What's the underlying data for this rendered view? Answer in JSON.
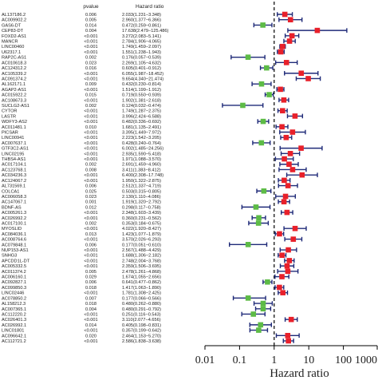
{
  "table": {
    "headers": {
      "pvalue": "pvalue",
      "hr": "Hazard ratio"
    }
  },
  "chart_data": {
    "type": "forest",
    "xscale": "log",
    "xlim": [
      0.01,
      1000
    ],
    "xticks": [
      0.01,
      0.1,
      1,
      10,
      100,
      1000
    ],
    "xtick_labels": [
      "0.01",
      "0.1",
      "1",
      "10",
      "100",
      "1000"
    ],
    "xlabel": "Hazard ratio",
    "reference_line": 1,
    "colors": {
      "risk": "#e8202a",
      "protective": "#5dbb46",
      "ci": "#1f2a78",
      "reference": "#000000"
    },
    "rows": [
      {
        "gene": "AL137186.2",
        "p": "0.006",
        "hr": 2.033,
        "lo": 1.231,
        "hi": 3.348,
        "text": "2.033(1.231−3.348)"
      },
      {
        "gene": "AC009902.2",
        "p": "0.005",
        "hr": 2.96,
        "lo": 1.377,
        "hi": 6.366,
        "text": "2.960(1.377−6.366)"
      },
      {
        "gene": "GAS6-DT",
        "p": "0.014",
        "hr": 0.472,
        "lo": 0.259,
        "hi": 0.861,
        "text": "0.472(0.259−0.861)"
      },
      {
        "gene": "CEP83-DT",
        "p": "0.004",
        "hr": 17.638,
        "lo": 2.479,
        "hi": 125.486,
        "text": "17.638(2.479−125.486)"
      },
      {
        "gene": "FOXD2-AS1",
        "p": "<0.001",
        "hr": 3.272,
        "lo": 2.083,
        "hi": 5.141,
        "text": "3.272(2.083−5.141)"
      },
      {
        "gene": "MANCR",
        "p": "<0.001",
        "hr": 2.784,
        "lo": 1.906,
        "hi": 4.065,
        "text": "2.784(1.906−4.065)"
      },
      {
        "gene": "LINC00460",
        "p": "<0.001",
        "hr": 1.749,
        "lo": 1.459,
        "hi": 2.097,
        "text": "1.749(1.459−2.097)"
      },
      {
        "gene": "U62317.1",
        "p": "<0.001",
        "hr": 1.551,
        "lo": 1.238,
        "hi": 1.943,
        "text": "1.551(1.238−1.943)"
      },
      {
        "gene": "RAP2C-AS1",
        "p": "0.002",
        "hr": 0.176,
        "lo": 0.057,
        "hi": 0.539,
        "text": "0.176(0.057−0.539)"
      },
      {
        "gene": "AC010618.3",
        "p": "0.023",
        "hr": 2.269,
        "lo": 1.105,
        "hi": 4.632,
        "text": "2.269(1.105−4.632)"
      },
      {
        "gene": "AC124312.2",
        "p": "0.016",
        "hr": 0.605,
        "lo": 0.401,
        "hi": 0.912,
        "text": "0.605(0.401−0.912)"
      },
      {
        "gene": "AC105339.2",
        "p": "<0.001",
        "hr": 6.055,
        "lo": 1.987,
        "hi": 18.452,
        "text": "6.055(1.987−18.452)"
      },
      {
        "gene": "AC091374.2",
        "p": "<0.001",
        "hr": 9.654,
        "lo": 4.34,
        "hi": 21.474,
        "text": "9.654(4.340−21.474)"
      },
      {
        "gene": "AL162171.1",
        "p": "0.009",
        "hr": 0.432,
        "lo": 0.23,
        "hi": 0.814,
        "text": "0.432(0.230−0.814)"
      },
      {
        "gene": "AGAP2-AS1",
        "p": "<0.001",
        "hr": 1.514,
        "lo": 1.199,
        "hi": 1.912,
        "text": "1.514(1.199−1.912)"
      },
      {
        "gene": "AC015922.2",
        "p": "0.015",
        "hr": 0.719,
        "lo": 0.55,
        "hi": 0.939,
        "text": "0.719(0.550−0.939)"
      },
      {
        "gene": "AC108673.3",
        "p": "<0.001",
        "hr": 1.902,
        "lo": 1.381,
        "hi": 2.618,
        "text": "1.902(1.381−2.618)"
      },
      {
        "gene": "SUCLG2-AS1",
        "p": "0.002",
        "hr": 0.124,
        "lo": 0.032,
        "hi": 0.474,
        "text": "0.124(0.032−0.474)"
      },
      {
        "gene": "CYTOR",
        "p": "<0.001",
        "hr": 1.749,
        "lo": 1.287,
        "hi": 2.375,
        "text": "1.749(1.287−2.375)"
      },
      {
        "gene": "LASTR",
        "p": "<0.001",
        "hr": 3.996,
        "lo": 2.424,
        "hi": 6.588,
        "text": "3.996(2.424−6.588)"
      },
      {
        "gene": "WDFY3-AS2",
        "p": "<0.001",
        "hr": 0.482,
        "lo": 0.336,
        "hi": 0.692,
        "text": "0.482(0.336−0.692)"
      },
      {
        "gene": "AC011481.1",
        "p": "0.010",
        "hr": 1.681,
        "lo": 1.135,
        "hi": 2.491,
        "text": "1.681(1.135−2.491)"
      },
      {
        "gene": "PICSAR",
        "p": "<0.001",
        "hr": 3.395,
        "lo": 1.449,
        "hi": 7.972,
        "text": "3.395(1.449−7.972)"
      },
      {
        "gene": "LINC00941",
        "p": "<0.001",
        "hr": 2.223,
        "lo": 1.542,
        "hi": 3.205,
        "text": "2.223(1.542−3.205)"
      },
      {
        "gene": "AC007637.1",
        "p": "<0.001",
        "hr": 0.428,
        "lo": 0.24,
        "hi": 0.764,
        "text": "0.428(0.240−0.764)"
      },
      {
        "gene": "GTF3C2-AS1",
        "p": "<0.001",
        "hr": 6.002,
        "lo": 1.485,
        "hi": 24.256,
        "text": "6.002(1.485−24.256)"
      },
      {
        "gene": "LINC02195",
        "p": "<0.001",
        "hr": 2.935,
        "lo": 1.59,
        "hi": 5.418,
        "text": "2.935(1.590−5.418)"
      },
      {
        "gene": "THBS4-AS1",
        "p": "<0.001",
        "hr": 1.971,
        "lo": 1.088,
        "hi": 3.57,
        "text": "1.971(1.088−3.570)"
      },
      {
        "gene": "AC017104.1",
        "p": "0.002",
        "hr": 2.691,
        "lo": 1.459,
        "hi": 4.96,
        "text": "2.691(1.459−4.960)"
      },
      {
        "gene": "AC123768.1",
        "p": "0.008",
        "hr": 3.411,
        "lo": 1.383,
        "hi": 8.412,
        "text": "3.411(1.383−8.412)"
      },
      {
        "gene": "AC034236.3",
        "p": "<0.001",
        "hr": 6.4,
        "lo": 2.308,
        "hi": 17.748,
        "text": "6.400(2.308−17.748)"
      },
      {
        "gene": "AC124067.2",
        "p": "<0.001",
        "hr": 1.95,
        "lo": 1.322,
        "hi": 2.875,
        "text": "1.950(1.322−2.875)"
      },
      {
        "gene": "AL731569.1",
        "p": "0.006",
        "hr": 2.512,
        "lo": 1.337,
        "hi": 4.719,
        "text": "2.512(1.337−4.719)"
      },
      {
        "gene": "COLCA1",
        "p": "0.025",
        "hr": 0.503,
        "lo": 0.315,
        "hi": 0.805,
        "text": "0.503(0.315−0.805)"
      },
      {
        "gene": "AC006058.3",
        "p": "0.023",
        "hr": 2.13,
        "lo": 1.11,
        "hi": 4.086,
        "text": "2.130(1.110−4.086)"
      },
      {
        "gene": "AC147067.1",
        "p": "0.001",
        "hr": 1.919,
        "lo": 1.32,
        "hi": 2.792,
        "text": "1.919(1.320−2.792)"
      },
      {
        "gene": "BDNF-AS",
        "p": "0.012",
        "hr": 0.298,
        "lo": 0.117,
        "hi": 0.758,
        "text": "0.298(0.117−0.758)"
      },
      {
        "gene": "AC005261.3",
        "p": "<0.001",
        "hr": 2.348,
        "lo": 1.603,
        "hi": 3.439,
        "text": "2.348(1.603−3.439)"
      },
      {
        "gene": "AC026992.2",
        "p": "<0.001",
        "hr": 0.36,
        "lo": 0.231,
        "hi": 0.562,
        "text": "0.360(0.231−0.562)"
      },
      {
        "gene": "AC017100.1",
        "p": "0.002",
        "hr": 0.353,
        "lo": 0.184,
        "hi": 0.675,
        "text": "0.353(0.184−0.675)"
      },
      {
        "gene": "MYOSLID",
        "p": "<0.001",
        "hr": 4.022,
        "lo": 1.92,
        "hi": 8.427,
        "text": "4.022(1.920−8.427)"
      },
      {
        "gene": "AC084036.1",
        "p": "0.013",
        "hr": 1.423,
        "lo": 1.077,
        "hi": 1.879,
        "text": "1.423(1.077−1.879)"
      },
      {
        "gene": "AC008764.6",
        "p": "<0.001",
        "hr": 3.57,
        "lo": 2.026,
        "hi": 6.293,
        "text": "3.570(2.026−6.293)"
      },
      {
        "gene": "AC079848.1",
        "p": "0.006",
        "hr": 0.177,
        "lo": 0.051,
        "hi": 0.61,
        "text": "0.177(0.051−0.610)"
      },
      {
        "gene": "NUP153-AS1",
        "p": "<0.001",
        "hr": 2.567,
        "lo": 1.488,
        "hi": 4.429,
        "text": "2.567(1.488−4.429)"
      },
      {
        "gene": "SNHG3",
        "p": "<0.001",
        "hr": 1.688,
        "lo": 1.306,
        "hi": 2.182,
        "text": "1.688(1.306−2.182)"
      },
      {
        "gene": "APCDD1L-DT",
        "p": "<0.001",
        "hr": 2.748,
        "lo": 2.004,
        "hi": 3.768,
        "text": "2.748(2.004−3.768)"
      },
      {
        "gene": "AC005332.5",
        "p": "<0.001",
        "hr": 2.359,
        "lo": 1.506,
        "hi": 3.695,
        "text": "2.359(1.506−3.695)"
      },
      {
        "gene": "AC011374.2",
        "p": "0.005",
        "hr": 2.478,
        "lo": 1.261,
        "hi": 4.868,
        "text": "2.478(1.261−4.868)"
      },
      {
        "gene": "AC006160.1",
        "p": "0.029",
        "hr": 1.674,
        "lo": 1.055,
        "hi": 2.656,
        "text": "1.674(1.055−2.656)"
      },
      {
        "gene": "AC092827.1",
        "p": "0.006",
        "hr": 0.641,
        "lo": 0.477,
        "hi": 0.862,
        "text": "0.641(0.477−0.862)"
      },
      {
        "gene": "AC099850.3",
        "p": "0.018",
        "hr": 1.417,
        "lo": 1.063,
        "hi": 1.89,
        "text": "1.417(1.063−1.890)"
      },
      {
        "gene": "LINC02446",
        "p": "<0.001",
        "hr": 1.781,
        "lo": 1.308,
        "hi": 2.425,
        "text": "1.781(1.308−2.425)"
      },
      {
        "gene": "AC078850.2",
        "p": "0.007",
        "hr": 0.177,
        "lo": 0.066,
        "hi": 0.566,
        "text": "0.177(0.066−0.566)"
      },
      {
        "gene": "AL158212.3",
        "p": "0.018",
        "hr": 0.48,
        "lo": 0.262,
        "hi": 0.88,
        "text": "0.480(0.262−0.880)"
      },
      {
        "gene": "AC007365.1",
        "p": "0.004",
        "hr": 0.48,
        "lo": 0.291,
        "hi": 0.792,
        "text": "0.480(0.291−0.792)"
      },
      {
        "gene": "AC112220.2",
        "p": "<0.001",
        "hr": 0.251,
        "lo": 0.116,
        "hi": 0.543,
        "text": "0.251(0.116−0.543)"
      },
      {
        "gene": "AC026401.3",
        "p": "<0.001",
        "hr": 3.11,
        "lo": 2.077,
        "hi": 4.656,
        "text": "3.110(2.077−4.656)"
      },
      {
        "gene": "AC026992.1",
        "p": "0.014",
        "hr": 0.405,
        "lo": 0.198,
        "hi": 0.831,
        "text": "0.405(0.198−0.831)"
      },
      {
        "gene": "LINC01801",
        "p": "<0.001",
        "hr": 0.357,
        "lo": 0.199,
        "hi": 0.642,
        "text": "0.357(0.199−0.642)"
      },
      {
        "gene": "AC096642.1",
        "p": "0.020",
        "hr": 2.464,
        "lo": 1.153,
        "hi": 5.27,
        "text": "2.464(1.153−5.270)"
      },
      {
        "gene": "AC112721.2",
        "p": "<0.001",
        "hr": 2.586,
        "lo": 1.838,
        "hi": 3.638,
        "text": "2.586(1.838−3.638)"
      }
    ]
  }
}
